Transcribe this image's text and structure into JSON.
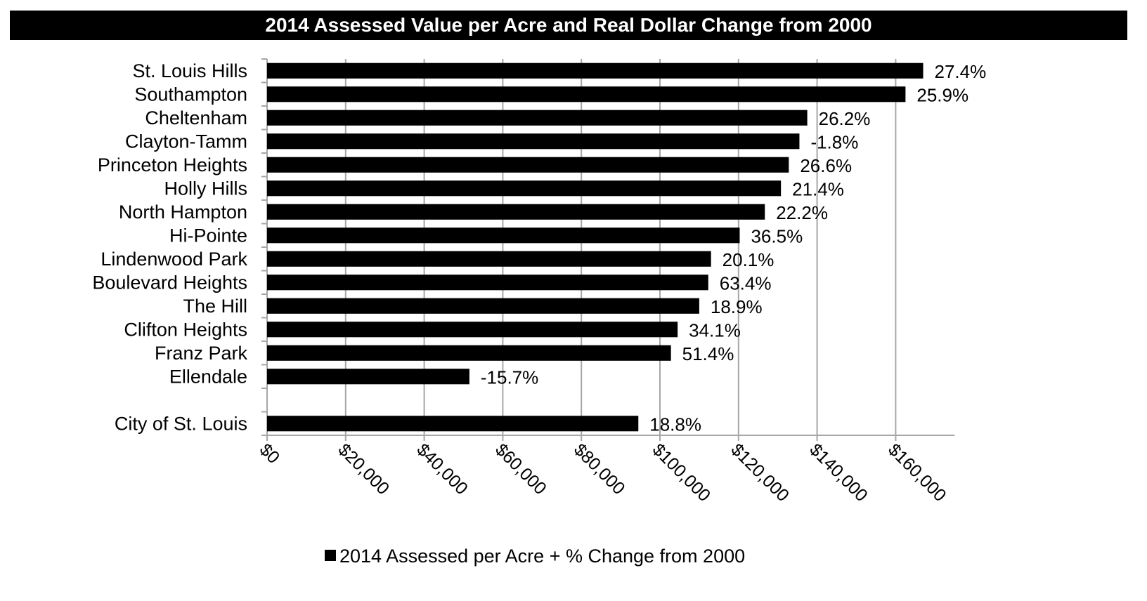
{
  "chart_data": {
    "type": "bar",
    "orientation": "horizontal",
    "title": "2014 Assessed Value per Acre and Real Dollar Change from 2000",
    "categories": [
      "St. Louis Hills",
      "Southampton",
      "Cheltenham",
      "Clayton-Tamm",
      "Princeton Heights",
      "Holly Hills",
      "North Hampton",
      "Hi-Pointe",
      "Lindenwood Park",
      "Boulevard Heights",
      "The Hill",
      "Clifton Heights",
      "Franz Park",
      "Ellendale",
      "",
      "City of St. Louis"
    ],
    "values": [
      167000,
      162500,
      137500,
      135500,
      132800,
      130800,
      126700,
      120300,
      113000,
      112300,
      110000,
      104500,
      102800,
      51500,
      null,
      94500
    ],
    "data_labels": [
      "27.4%",
      "25.9%",
      "26.2%",
      "-1.8%",
      "26.6%",
      "21.4%",
      "22.2%",
      "36.5%",
      "20.1%",
      "63.4%",
      "18.9%",
      "34.1%",
      "51.4%",
      "-15.7%",
      "",
      "18.8%"
    ],
    "x_ticks": [
      "$0",
      "$20,000",
      "$40,000",
      "$60,000",
      "$80,000",
      "$100,000",
      "$120,000",
      "$140,000",
      "$160,000"
    ],
    "xlim": [
      0,
      175000
    ],
    "grid": true,
    "legend": {
      "position": "bottom",
      "label": "2014 Assessed per Acre + % Change from 2000"
    },
    "colors": {
      "bar": "#000000",
      "grid": "#a6a6a6"
    }
  }
}
